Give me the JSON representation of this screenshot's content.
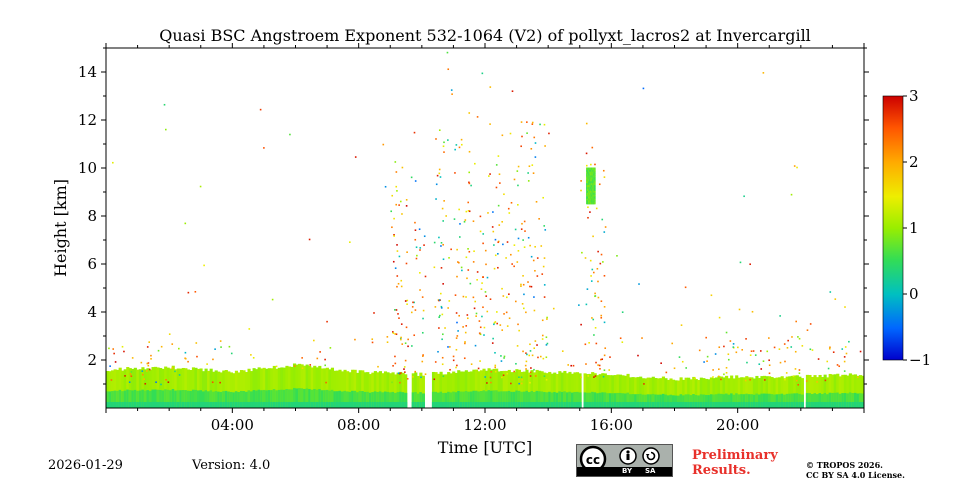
{
  "chart_data": {
    "type": "heatmap",
    "title": "Quasi BSC Angstroem Exponent 532-1064 (V2) of pollyxt_lacros2 at Invercargill",
    "xlabel": "Time [UTC]",
    "ylabel": "Height [km]",
    "xlim_hours": [
      0,
      24
    ],
    "ylim_km": [
      0,
      15
    ],
    "x_ticks": [
      {
        "hour": 4,
        "label": "04:00"
      },
      {
        "hour": 8,
        "label": "08:00"
      },
      {
        "hour": 12,
        "label": "12:00"
      },
      {
        "hour": 16,
        "label": "16:00"
      },
      {
        "hour": 20,
        "label": "20:00"
      }
    ],
    "y_ticks": [
      {
        "km": 2,
        "label": "2"
      },
      {
        "km": 4,
        "label": "4"
      },
      {
        "km": 6,
        "label": "6"
      },
      {
        "km": 8,
        "label": "8"
      },
      {
        "km": 10,
        "label": "10"
      },
      {
        "km": 12,
        "label": "12"
      },
      {
        "km": 14,
        "label": "14"
      }
    ],
    "colorbar": {
      "min": -1,
      "max": 3,
      "ticks": [
        {
          "value": 3,
          "label": "3"
        },
        {
          "value": 2,
          "label": "2"
        },
        {
          "value": 1,
          "label": "1"
        },
        {
          "value": 0,
          "label": "0"
        },
        {
          "value": -1,
          "label": "−1"
        }
      ]
    },
    "data_gaps_hours": [
      {
        "from": 9.55,
        "to": 9.65
      },
      {
        "from": 10.1,
        "to": 10.35
      },
      {
        "from": 15.05,
        "to": 15.15
      },
      {
        "from": 22.05,
        "to": 22.15
      }
    ],
    "boundary_layer_top_km": [
      {
        "hour": 0,
        "km": 1.6
      },
      {
        "hour": 2,
        "km": 1.7
      },
      {
        "hour": 4,
        "km": 1.5
      },
      {
        "hour": 6,
        "km": 1.8
      },
      {
        "hour": 8,
        "km": 1.5
      },
      {
        "hour": 10,
        "km": 1.4
      },
      {
        "hour": 12,
        "km": 1.6
      },
      {
        "hour": 14,
        "km": 1.5
      },
      {
        "hour": 16,
        "km": 1.4
      },
      {
        "hour": 18,
        "km": 1.2
      },
      {
        "hour": 20,
        "km": 1.3
      },
      {
        "hour": 22,
        "km": 1.3
      },
      {
        "hour": 24,
        "km": 1.4
      }
    ],
    "cloud_layer": {
      "hour_from": 15.2,
      "hour_to": 15.45,
      "km_from": 8.5,
      "km_to": 10.0,
      "value": 0.7
    }
  },
  "footer": {
    "date": "2026-01-29",
    "version": "Version: 4.0",
    "preliminary_line1": "Preliminary",
    "preliminary_line2": "Results.",
    "copyright_line1": "© TROPOS 2026.",
    "copyright_line2": "CC BY SA 4.0 License.",
    "license_by": "BY",
    "license_sa": "SA"
  }
}
